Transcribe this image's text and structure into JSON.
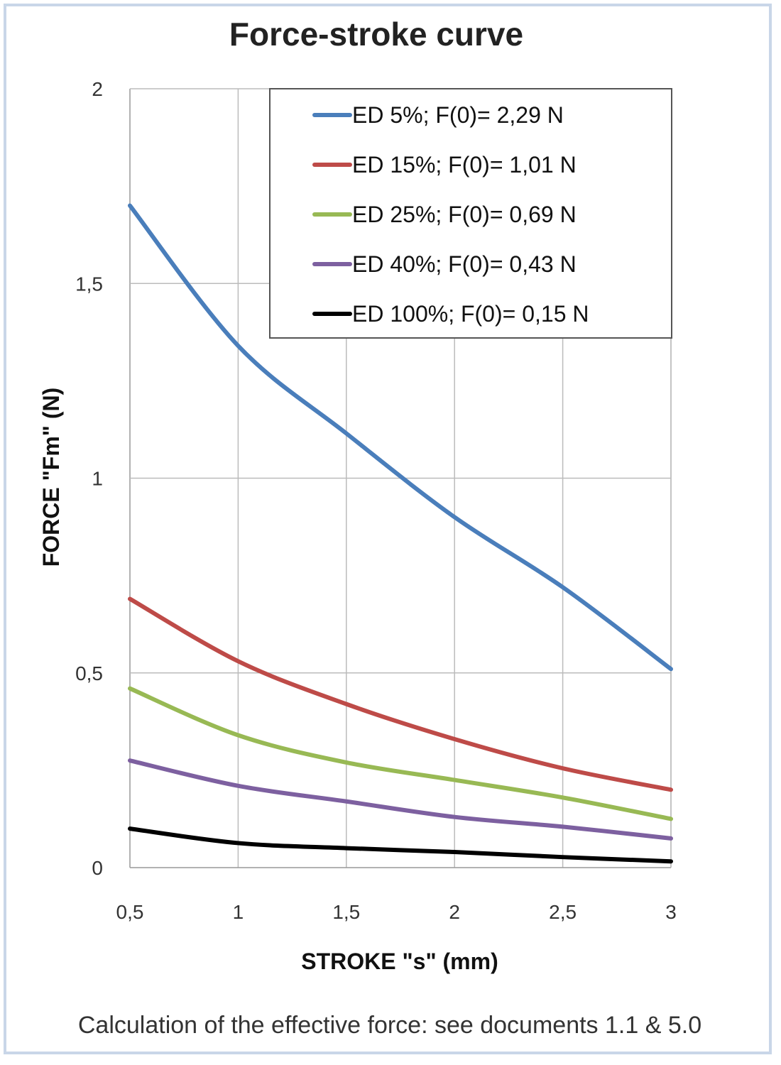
{
  "chart_data": {
    "type": "line",
    "title": "Force-stroke curve",
    "xlabel": "STROKE \"s\" (mm)",
    "ylabel": "FORCE \"Fm\" (N)",
    "xlim": [
      0.5,
      3
    ],
    "ylim": [
      0,
      2
    ],
    "x_ticks": [
      "0,5",
      "1",
      "1,5",
      "2",
      "2,5",
      "3"
    ],
    "y_ticks": [
      "0",
      "0,5",
      "1",
      "1,5",
      "2"
    ],
    "grid": true,
    "legend_position": "top-right",
    "x": [
      0.5,
      1,
      1.5,
      2,
      2.5,
      3
    ],
    "series": [
      {
        "name": "ED 5%; F(0)= 2,29 N",
        "color": "#4a7ebb",
        "values": [
          1.7,
          1.34,
          1.115,
          0.9,
          0.72,
          0.51
        ]
      },
      {
        "name": "ED 15%; F(0)= 1,01 N",
        "color": "#be4b48",
        "values": [
          0.69,
          0.53,
          0.42,
          0.33,
          0.255,
          0.2
        ]
      },
      {
        "name": "ED 25%; F(0)= 0,69 N",
        "color": "#98b954",
        "values": [
          0.46,
          0.34,
          0.27,
          0.225,
          0.18,
          0.125
        ]
      },
      {
        "name": "ED 40%; F(0)= 0,43 N",
        "color": "#7d60a0",
        "values": [
          0.275,
          0.21,
          0.17,
          0.13,
          0.105,
          0.075
        ]
      },
      {
        "name": "ED 100%; F(0)= 0,15 N",
        "color": "#000000",
        "values": [
          0.1,
          0.063,
          0.05,
          0.04,
          0.027,
          0.016
        ]
      }
    ]
  },
  "footer": "Calculation of the effective force: see documents 1.1 & 5.0"
}
